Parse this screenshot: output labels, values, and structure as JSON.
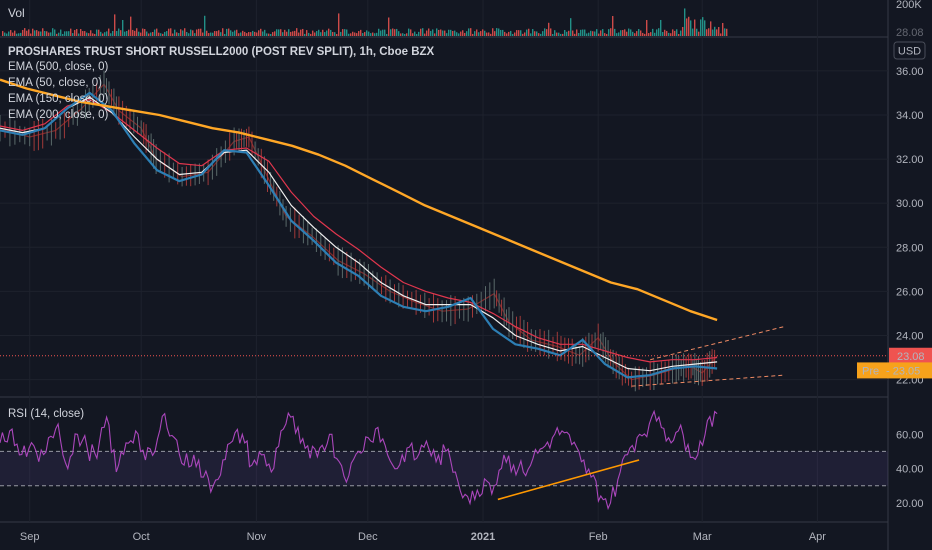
{
  "chart_data": {
    "type": "line",
    "title": "PROSHARES TRUST SHORT RUSSELL2000 (POST REV SPLIT), 1h, Cboe BZX",
    "currency_button": "USD",
    "volume_pane": {
      "label": "Vol",
      "ticks": [
        "200K",
        "28.08"
      ]
    },
    "price_axis": {
      "ticks": [
        "36.00",
        "34.00",
        "32.00",
        "30.00",
        "28.00",
        "26.00",
        "24.00",
        "22.00"
      ],
      "ylim": [
        21.3,
        37.4
      ]
    },
    "x_ticks": [
      "Sep",
      "Oct",
      "Nov",
      "Dec",
      "2021",
      "Feb",
      "Mar",
      "Apr"
    ],
    "x_range": [
      "2020-08-24",
      "2021-04-20"
    ],
    "last_price": {
      "label": "23.08",
      "value": 23.08,
      "color": "#ef5350"
    },
    "pre_price": {
      "label": "Pre",
      "value_label": "23.05",
      "value": 23.05,
      "color": "#f7a21b"
    },
    "legends": [
      {
        "text": "EMA (500, close, 0)",
        "color": "#ffa726"
      },
      {
        "text": "EMA (50, close, 0)",
        "color": "#f0f0f0"
      },
      {
        "text": "EMA (150, close, 0)",
        "color": "#e0364d"
      },
      {
        "text": "EMA (200, close, 0)",
        "color": "#2d7fb5"
      }
    ],
    "price_series": {
      "dates": [
        "2020-08-24",
        "2020-09-01",
        "2020-09-08",
        "2020-09-15",
        "2020-09-21",
        "2020-09-25",
        "2020-10-01",
        "2020-10-05",
        "2020-10-12",
        "2020-10-19",
        "2020-10-26",
        "2020-10-30",
        "2020-11-04",
        "2020-11-09",
        "2020-11-16",
        "2020-11-23",
        "2020-11-30",
        "2020-12-07",
        "2020-12-14",
        "2020-12-21",
        "2020-12-28",
        "2021-01-04",
        "2021-01-08",
        "2021-01-14",
        "2021-01-21",
        "2021-01-27",
        "2021-02-01",
        "2021-02-05",
        "2021-02-10",
        "2021-02-16",
        "2021-02-22",
        "2021-02-26",
        "2021-03-01",
        "2021-03-05"
      ],
      "close": [
        33.4,
        33.0,
        33.3,
        34.3,
        35.4,
        34.2,
        33.4,
        32.0,
        31.2,
        31.4,
        32.8,
        33.0,
        31.2,
        29.4,
        28.5,
        27.4,
        26.8,
        26.0,
        25.5,
        25.1,
        25.2,
        25.9,
        24.6,
        23.8,
        23.5,
        23.1,
        23.9,
        22.8,
        22.0,
        22.2,
        22.5,
        22.6,
        22.3,
        23.08
      ]
    },
    "ema_series": {
      "ema500": {
        "values": [
          35.6,
          35.2,
          34.9,
          34.6,
          34.4,
          34.2,
          34.0,
          33.7,
          33.4,
          33.2,
          32.9,
          32.6,
          32.2,
          31.7,
          31.1,
          30.5,
          29.9,
          29.4,
          28.9,
          28.4,
          27.9,
          27.4,
          26.9,
          26.4,
          26.1,
          25.6,
          25.1,
          24.7
        ],
        "end_date": "2021-03-05",
        "start_date": "2020-08-24"
      },
      "ema150": {
        "values": [
          33.5,
          33.3,
          33.6,
          34.4,
          34.7,
          34.1,
          33.3,
          32.5,
          31.8,
          31.7,
          32.4,
          32.5,
          31.9,
          30.5,
          29.4,
          28.6,
          27.9,
          27.1,
          26.4,
          26.0,
          25.7,
          25.5,
          25.0,
          24.4,
          23.9,
          23.6,
          23.6,
          23.3,
          23.0,
          22.8,
          22.9,
          22.9,
          23.0
        ],
        "start_date": "2020-08-24",
        "end_date": "2021-03-05"
      },
      "ema50": {
        "values": [
          33.4,
          33.2,
          33.4,
          34.3,
          34.8,
          34.1,
          33.0,
          32.0,
          31.3,
          31.4,
          32.3,
          32.4,
          31.4,
          29.9,
          28.9,
          28.0,
          27.3,
          26.4,
          25.8,
          25.4,
          25.4,
          25.4,
          24.8,
          24.0,
          23.6,
          23.3,
          23.5,
          23.0,
          22.5,
          22.4,
          22.6,
          22.7,
          22.8
        ],
        "start_date": "2020-08-24",
        "end_date": "2021-03-05"
      },
      "ema200": {
        "values": [
          33.3,
          33.1,
          33.4,
          34.3,
          35.0,
          34.2,
          32.7,
          31.5,
          31.0,
          31.3,
          32.4,
          32.3,
          30.8,
          29.2,
          28.3,
          27.3,
          26.7,
          25.8,
          25.3,
          25.1,
          25.3,
          25.7,
          24.3,
          23.6,
          23.4,
          23.1,
          23.8,
          22.7,
          22.1,
          22.2,
          22.5,
          22.6,
          22.5
        ],
        "start_date": "2020-08-24",
        "end_date": "2021-03-05"
      }
    },
    "trendlines": [
      {
        "from": [
          "2021-02-15",
          22.9
        ],
        "to": [
          "2021-03-23",
          24.4
        ],
        "style": "dashed"
      },
      {
        "from": [
          "2021-02-10",
          21.7
        ],
        "to": [
          "2021-03-23",
          22.2
        ],
        "style": "dashed"
      }
    ],
    "rsi": {
      "label": "RSI (14, close)",
      "ticks": [
        "60.00",
        "40.00",
        "20.00"
      ],
      "ylim": [
        10,
        80
      ],
      "bands": [
        30,
        50
      ],
      "values": [
        55,
        62,
        48,
        52,
        44,
        58,
        66,
        40,
        60,
        52,
        46,
        70,
        38,
        55,
        62,
        45,
        50,
        72,
        58,
        42,
        48,
        35,
        30,
        45,
        56,
        60,
        42,
        48,
        38,
        62,
        70,
        55,
        46,
        52,
        60,
        44,
        36,
        50,
        58,
        64,
        48,
        40,
        52,
        46,
        56,
        44,
        50,
        38,
        25,
        22,
        34,
        30,
        48,
        42,
        38,
        46,
        52,
        58,
        62,
        54,
        44,
        35,
        24,
        20,
        38,
        52,
        60,
        66,
        70,
        58,
        62,
        54,
        48,
        68,
        72
      ],
      "trendline": {
        "from": [
          "2021-01-05",
          22
        ],
        "to": [
          "2021-02-12",
          45
        ],
        "color": "#ff9800"
      }
    }
  }
}
